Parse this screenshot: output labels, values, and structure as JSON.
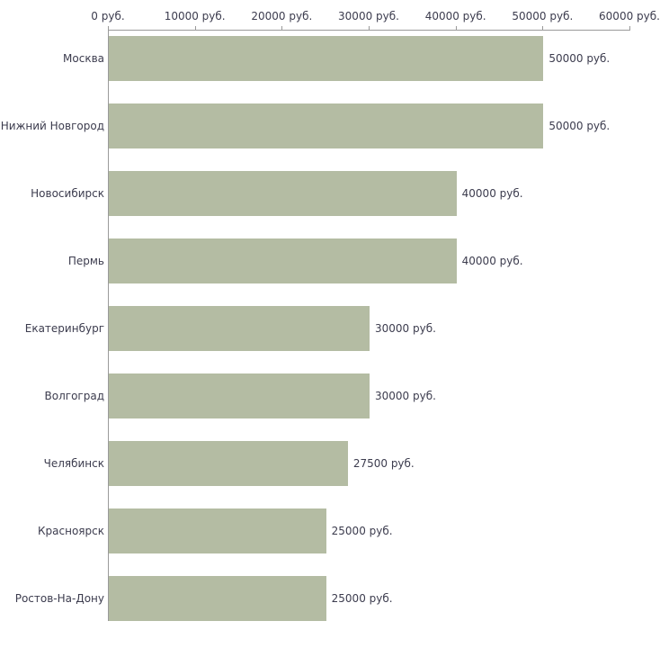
{
  "chart_data": {
    "type": "bar",
    "orientation": "horizontal",
    "title": "",
    "categories": [
      "Москва",
      "Нижний Новгород",
      "Новосибирск",
      "Пермь",
      "Екатеринбург",
      "Волгоград",
      "Челябинск",
      "Красноярск",
      "Ростов-На-Дону"
    ],
    "values": [
      50000,
      50000,
      40000,
      40000,
      30000,
      30000,
      27500,
      25000,
      25000
    ],
    "value_labels": [
      "50000 руб.",
      "50000 руб.",
      "40000 руб.",
      "40000 руб.",
      "30000 руб.",
      "30000 руб.",
      "27500 руб.",
      "25000 руб.",
      "25000 руб."
    ],
    "x_ticks": [
      0,
      10000,
      20000,
      30000,
      40000,
      50000,
      60000
    ],
    "x_tick_labels": [
      "0 руб.",
      "10000 руб.",
      "20000 руб.",
      "30000 руб.",
      "40000 руб.",
      "50000 руб.",
      "60000 руб."
    ],
    "xlim": [
      0,
      60000
    ],
    "grid": false,
    "legend": false,
    "axis_position": "top",
    "bar_color": "#b4bca3",
    "axis_color": "#9a9a9a",
    "text_color": "#3c3c4e"
  }
}
